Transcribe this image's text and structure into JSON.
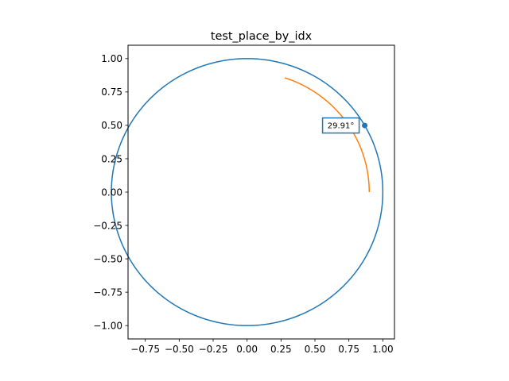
{
  "chart_data": {
    "type": "line",
    "title": "test_place_by_idx",
    "xlabel": "",
    "ylabel": "",
    "xlim": [
      -0.877,
      1.086
    ],
    "ylim": [
      -1.1,
      1.1
    ],
    "xticks": [
      -0.75,
      -0.5,
      -0.25,
      0.0,
      0.25,
      0.5,
      0.75,
      1.0
    ],
    "xtick_labels": [
      "−0.75",
      "−0.50",
      "−0.25",
      "0.00",
      "0.25",
      "0.50",
      "0.75",
      "1.00"
    ],
    "yticks": [
      1.0,
      0.75,
      0.5,
      0.25,
      0.0,
      -0.25,
      -0.5,
      -0.75,
      -1.0
    ],
    "ytick_labels": [
      "1.00",
      "0.75",
      "0.50",
      "0.25",
      "0.00",
      "−0.25",
      "−0.50",
      "−0.75",
      "−1.00"
    ],
    "grid": false,
    "series": [
      {
        "color": "#1f77b4",
        "radius": 1.0,
        "theta_start_deg": -216,
        "theta_end_deg": 216
      },
      {
        "color": "#ff7f0e",
        "radius": 0.9,
        "theta_start_deg": 0,
        "theta_end_deg": 72
      }
    ],
    "marker": {
      "x": 0.8667,
      "y": 0.499,
      "color": "#1f77b4"
    },
    "annotation": {
      "text": "29.91°",
      "x": 0.8667,
      "y": 0.499,
      "border_color": "#1f77b4"
    }
  }
}
